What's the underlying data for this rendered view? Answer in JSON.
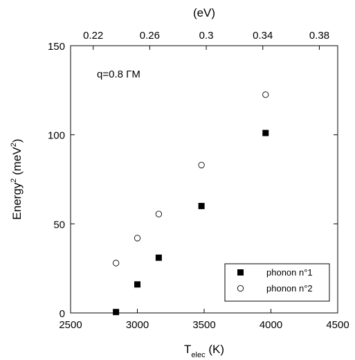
{
  "chart_data": {
    "type": "scatter",
    "xlabel_main": "T",
    "xlabel_sub": "elec",
    "xlabel_unit": " (K)",
    "ylabel_main": "Energy",
    "ylabel_sup": "2",
    "ylabel_unit_open": " (meV",
    "ylabel_unit_close": ")",
    "top_axis_label": "(eV)",
    "annotation": "q=0.8 ΓM",
    "xlim": [
      2500,
      4500
    ],
    "ylim": [
      0,
      150
    ],
    "xticks": [
      2500,
      3000,
      3500,
      4000,
      4500
    ],
    "xtick_labels": [
      "2500",
      "3000",
      "3500",
      "4000",
      "4500"
    ],
    "yticks": [
      0,
      50,
      100,
      150
    ],
    "ytick_labels": [
      "0",
      "50",
      "100",
      "150"
    ],
    "top_ticks": [
      0.22,
      0.26,
      0.3,
      0.34,
      0.38
    ],
    "top_tick_labels": [
      "0.22",
      "0.26",
      "0.3",
      "0.34",
      "0.38"
    ],
    "top_xlim": [
      0.204,
      0.393
    ],
    "legend_position": "bottom-right",
    "series": [
      {
        "name": "phonon n°1",
        "marker": "filled-square",
        "color": "#000000",
        "x": [
          2840,
          3000,
          3160,
          3480,
          3960
        ],
        "y": [
          0.5,
          16,
          31,
          60,
          101
        ]
      },
      {
        "name": "phonon n°2",
        "marker": "open-circle",
        "color": "#000000",
        "x": [
          2840,
          3000,
          3160,
          3480,
          3960
        ],
        "y": [
          28,
          42,
          55.5,
          83,
          122.5
        ]
      }
    ]
  }
}
